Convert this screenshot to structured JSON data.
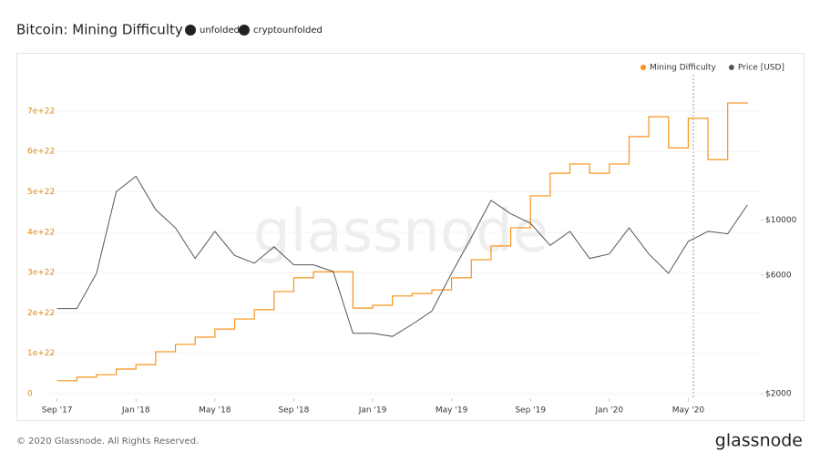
{
  "header": {
    "title": "Bitcoin: Mining Difficulty",
    "social": [
      "unfolded",
      "cryptounfolded"
    ]
  },
  "watermark": "glassnode",
  "footer": {
    "copyright": "© 2020 Glassnode. All Rights Reserved.",
    "brand": "glassnode"
  },
  "chart_data": {
    "type": "line",
    "step": true,
    "x": [
      "2017-09",
      "2017-10",
      "2017-11",
      "2017-12",
      "2018-01",
      "2018-02",
      "2018-03",
      "2018-04",
      "2018-05",
      "2018-06",
      "2018-07",
      "2018-08",
      "2018-09",
      "2018-10",
      "2018-11",
      "2018-12",
      "2019-01",
      "2019-02",
      "2019-03",
      "2019-04",
      "2019-05",
      "2019-06",
      "2019-07",
      "2019-08",
      "2019-09",
      "2019-10",
      "2019-11",
      "2019-12",
      "2020-01",
      "2020-02",
      "2020-03",
      "2020-04",
      "2020-05",
      "2020-06",
      "2020-07",
      "2020-08"
    ],
    "xlim": [
      "2017-08",
      "2020-09"
    ],
    "xticks": [
      {
        "value": "2017-09",
        "label": "Sep '17"
      },
      {
        "value": "2018-01",
        "label": "Jan '18"
      },
      {
        "value": "2018-05",
        "label": "May '18"
      },
      {
        "value": "2018-09",
        "label": "Sep '18"
      },
      {
        "value": "2019-01",
        "label": "Jan '19"
      },
      {
        "value": "2019-05",
        "label": "May '19"
      },
      {
        "value": "2019-09",
        "label": "Sep '19"
      },
      {
        "value": "2020-01",
        "label": "Jan '20"
      },
      {
        "value": "2020-05",
        "label": "May '20"
      }
    ],
    "ylim": [
      0,
      7.8e+22
    ],
    "yticks": [
      0,
      {
        "value": 1e+22,
        "label": "1e+22"
      },
      {
        "value": 2e+22,
        "label": "2e+22"
      },
      {
        "value": 3e+22,
        "label": "3e+22"
      },
      {
        "value": 4e+22,
        "label": "4e+22"
      },
      {
        "value": 5e+22,
        "label": "5e+22"
      },
      {
        "value": 6e+22,
        "label": "6e+22"
      },
      {
        "value": 7e+22,
        "label": "7e+22"
      }
    ],
    "y2lim": [
      2000,
      37000
    ],
    "y2log": true,
    "y2ticks": [
      {
        "value": 2000,
        "label": "$2000"
      },
      {
        "value": 6000,
        "label": "$6000"
      },
      {
        "value": 10000,
        "label": "$10000"
      }
    ],
    "legend": "top-right",
    "series": [
      {
        "name": "Mining Difficulty",
        "color": "#f7931a",
        "step": true,
        "values": [
          3.2e+21,
          4.1e+21,
          4.7e+21,
          6.1e+21,
          7.2e+21,
          1.04e+22,
          1.22e+22,
          1.4e+22,
          1.6e+22,
          1.85e+22,
          2.08e+22,
          2.53e+22,
          2.87e+22,
          3.02e+22,
          3.02e+22,
          2.12e+22,
          2.19e+22,
          2.42e+22,
          2.48e+22,
          2.57e+22,
          2.87e+22,
          3.32e+22,
          3.66e+22,
          4.11e+22,
          4.9e+22,
          5.46e+22,
          5.69e+22,
          5.46e+22,
          5.69e+22,
          6.37e+22,
          6.86e+22,
          6.09e+22,
          6.82e+22,
          5.8e+22,
          7.2e+22,
          7.22e+22
        ]
      },
      {
        "name": "Price [USD]",
        "color": "#555555",
        "axis": "y2",
        "values": [
          4400,
          4400,
          6100,
          13000,
          15000,
          11000,
          9300,
          7000,
          9000,
          7200,
          6700,
          7800,
          6600,
          6600,
          6200,
          3500,
          3500,
          3400,
          3800,
          4300,
          6100,
          8500,
          12000,
          10600,
          9700,
          7900,
          9000,
          7000,
          7300,
          9300,
          7300,
          6100,
          8200,
          9000,
          8800,
          11500
        ]
      }
    ]
  }
}
